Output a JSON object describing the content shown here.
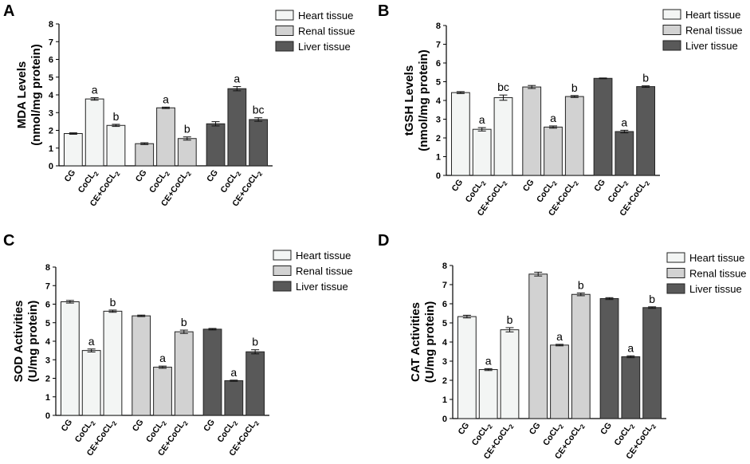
{
  "legend": {
    "heart": "Heart tissue",
    "renal": "Renal tissue",
    "liver": "Liver tissue"
  },
  "colors": {
    "heart": "#f3f5f4",
    "renal": "#d2d2d2",
    "liver": "#595959",
    "stroke": "#222222"
  },
  "chart_data": [
    {
      "type": "bar",
      "panel_letter": "A",
      "ylabel": "MDA Levels",
      "ylabel2": "(nmol/mg protein)",
      "ylim": [
        0,
        8
      ],
      "yticks": [
        "0",
        "1",
        "2",
        "3",
        "4",
        "5",
        "6",
        "7",
        "8"
      ],
      "categories": [
        "CG",
        "CoCL2",
        "CE+CoCL2"
      ],
      "series": [
        {
          "name": "Heart tissue",
          "values": [
            1.82,
            3.77,
            2.28
          ],
          "errors": [
            0.04,
            0.07,
            0.06
          ],
          "labels": [
            "",
            "a",
            "b"
          ]
        },
        {
          "name": "Renal tissue",
          "values": [
            1.25,
            3.27,
            1.54
          ],
          "errors": [
            0.05,
            0.04,
            0.09
          ],
          "labels": [
            "",
            "a",
            "b"
          ]
        },
        {
          "name": "Liver tissue",
          "values": [
            2.37,
            4.35,
            2.61
          ],
          "errors": [
            0.12,
            0.12,
            0.1
          ],
          "labels": [
            "",
            "a",
            "bc"
          ]
        }
      ]
    },
    {
      "type": "bar",
      "panel_letter": "B",
      "ylabel": "tGSH Levels",
      "ylabel2": "(nmol/mg protein)",
      "ylim": [
        0,
        8
      ],
      "yticks": [
        "0",
        "1",
        "2",
        "3",
        "4",
        "5",
        "6",
        "7",
        "8"
      ],
      "categories": [
        "CG",
        "CoCL2",
        "CE+CoCL2"
      ],
      "series": [
        {
          "name": "Heart tissue",
          "values": [
            4.42,
            2.46,
            4.15
          ],
          "errors": [
            0.05,
            0.09,
            0.14
          ],
          "labels": [
            "",
            "a",
            "bc"
          ]
        },
        {
          "name": "Renal tissue",
          "values": [
            4.72,
            2.58,
            4.21
          ],
          "errors": [
            0.08,
            0.06,
            0.05
          ],
          "labels": [
            "",
            "a",
            "b"
          ]
        },
        {
          "name": "Liver tissue",
          "values": [
            5.18,
            2.34,
            4.74
          ],
          "errors": [
            0.02,
            0.07,
            0.04
          ],
          "labels": [
            "",
            "a",
            "b"
          ]
        }
      ]
    },
    {
      "type": "bar",
      "panel_letter": "C",
      "ylabel": "SOD Activities",
      "ylabel2": "(U/mg protein)",
      "ylim": [
        0,
        8
      ],
      "yticks": [
        "0",
        "1",
        "2",
        "3",
        "4",
        "5",
        "6",
        "7",
        "8"
      ],
      "categories": [
        "CG",
        "CoCL2",
        "CE+CoCL2"
      ],
      "series": [
        {
          "name": "Heart tissue",
          "values": [
            6.13,
            3.5,
            5.62
          ],
          "errors": [
            0.07,
            0.08,
            0.06
          ],
          "labels": [
            "",
            "a",
            "b"
          ]
        },
        {
          "name": "Renal tissue",
          "values": [
            5.37,
            2.6,
            4.51
          ],
          "errors": [
            0.04,
            0.06,
            0.09
          ],
          "labels": [
            "",
            "a",
            "b"
          ]
        },
        {
          "name": "Liver tissue",
          "values": [
            4.65,
            1.87,
            3.43
          ],
          "errors": [
            0.04,
            0.03,
            0.11
          ],
          "labels": [
            "",
            "a",
            "b"
          ]
        }
      ]
    },
    {
      "type": "bar",
      "panel_letter": "D",
      "ylabel": "CAT Activities",
      "ylabel2": "(U/mg protein)",
      "ylim": [
        0,
        8
      ],
      "yticks": [
        "0",
        "1",
        "2",
        "3",
        "4",
        "5",
        "6",
        "7",
        "8"
      ],
      "categories": [
        "CG",
        "CoCL2",
        "CE+CoCL2"
      ],
      "series": [
        {
          "name": "Heart tissue",
          "values": [
            5.33,
            2.56,
            4.64
          ],
          "errors": [
            0.07,
            0.05,
            0.11
          ],
          "labels": [
            "",
            "a",
            "b"
          ]
        },
        {
          "name": "Renal tissue",
          "values": [
            7.55,
            3.84,
            6.49
          ],
          "errors": [
            0.1,
            0.04,
            0.07
          ],
          "labels": [
            "",
            "a",
            "b"
          ]
        },
        {
          "name": "Liver tissue",
          "values": [
            6.27,
            3.23,
            5.8
          ],
          "errors": [
            0.05,
            0.05,
            0.04
          ],
          "labels": [
            "",
            "a",
            "b"
          ]
        }
      ]
    }
  ]
}
